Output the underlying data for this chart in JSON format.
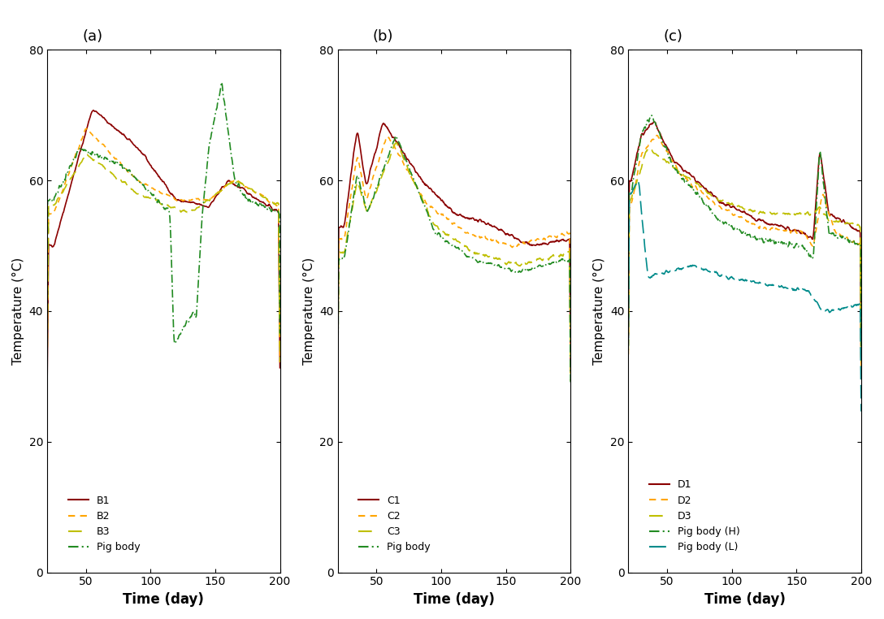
{
  "panels": [
    "(a)",
    "(b)",
    "(c)"
  ],
  "xlim": [
    20,
    200
  ],
  "ylim": [
    0,
    80
  ],
  "xticks": [
    50,
    100,
    150,
    200
  ],
  "yticks": [
    0,
    20,
    40,
    60,
    80
  ],
  "xlabel": "Time (day)",
  "ylabel": "Temperature (°C)",
  "colors": {
    "B1_C1_D1": "#8B0000",
    "B2_C2_D2": "#FFA500",
    "B3_C3_D3": "#BFBF00",
    "pig_body_green": "#228B22",
    "pig_body_teal": "#008B8B"
  }
}
